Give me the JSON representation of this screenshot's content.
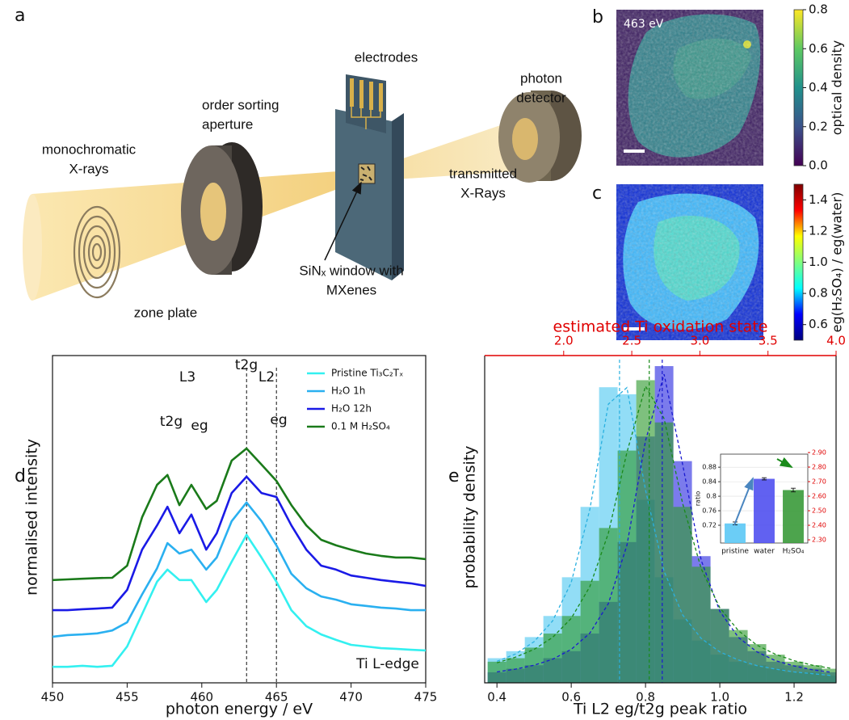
{
  "diagram": {
    "panel_label": "a",
    "labels": [
      {
        "lines": [
          "monochromatic",
          "X-rays"
        ]
      },
      {
        "lines": [
          "order sorting",
          "aperture"
        ]
      },
      {
        "lines": [
          "electrodes"
        ]
      },
      {
        "lines": [
          "photon",
          "detector"
        ]
      },
      {
        "lines": [
          "transmitted",
          "X-Rays"
        ]
      },
      {
        "lines": [
          "SiNₓ window with",
          "MXenes"
        ]
      },
      {
        "lines": [
          "zone plate"
        ]
      }
    ]
  },
  "chart_data": [
    {
      "type": "image",
      "panel_label": "b",
      "annotation": "463 eV",
      "colorbar_label": "optical density",
      "colormap": "viridis",
      "clim": [
        0,
        0.8
      ],
      "cticks": [
        {
          "value": 0,
          "label": "0.0"
        },
        {
          "value": 0.2,
          "label": "0.2"
        },
        {
          "value": 0.4,
          "label": "0.4"
        },
        {
          "value": 0.6,
          "label": "0.6"
        },
        {
          "value": 0.8,
          "label": "0.8"
        }
      ]
    },
    {
      "type": "image",
      "panel_label": "c",
      "colorbar_label": "eg(H₂SO₄) / eg(water)",
      "colormap": "jet",
      "clim": [
        0.5,
        1.5
      ],
      "cticks": [
        0.6,
        0.8,
        {
          "value": 1,
          "label": "1.0"
        },
        1.2,
        1.4
      ]
    },
    {
      "type": "line",
      "panel_label": "d",
      "xlabel": "photon energy / eV",
      "ylabel": "normalised intensity",
      "x": [
        450,
        451,
        452,
        453,
        454,
        455,
        456,
        457,
        457.7,
        458.5,
        459.3,
        460.3,
        461,
        462,
        463,
        464,
        465,
        466,
        467,
        468,
        469,
        470,
        471,
        472,
        473,
        474,
        475
      ],
      "series": [
        {
          "name": "Pristine Ti₃C₂Tₓ",
          "color": "#33f0f0",
          "values": [
            0.049,
            0.049,
            0.052,
            0.049,
            0.052,
            0.111,
            0.21,
            0.309,
            0.346,
            0.314,
            0.314,
            0.247,
            0.284,
            0.37,
            0.452,
            0.383,
            0.309,
            0.222,
            0.173,
            0.148,
            0.131,
            0.116,
            0.111,
            0.106,
            0.104,
            0.101,
            0.099
          ]
        },
        {
          "name": "H₂O 1h",
          "color": "#2ab0f0",
          "values": [
            0.141,
            0.146,
            0.148,
            0.151,
            0.16,
            0.185,
            0.27,
            0.35,
            0.427,
            0.395,
            0.407,
            0.346,
            0.383,
            0.494,
            0.551,
            0.494,
            0.42,
            0.333,
            0.289,
            0.264,
            0.254,
            0.24,
            0.235,
            0.23,
            0.227,
            0.222,
            0.222
          ]
        },
        {
          "name": "H₂O 12h",
          "color": "#1a1ae6",
          "values": [
            0.222,
            0.222,
            0.225,
            0.227,
            0.23,
            0.284,
            0.407,
            0.481,
            0.538,
            0.457,
            0.514,
            0.407,
            0.457,
            0.58,
            0.63,
            0.58,
            0.568,
            0.481,
            0.407,
            0.358,
            0.346,
            0.328,
            0.321,
            0.314,
            0.309,
            0.304,
            0.296
          ]
        },
        {
          "name": "0.1 M H₂SO₄",
          "color": "#1a7a1a",
          "values": [
            0.314,
            0.316,
            0.318,
            0.32,
            0.321,
            0.358,
            0.506,
            0.605,
            0.635,
            0.543,
            0.605,
            0.531,
            0.556,
            0.679,
            0.716,
            0.667,
            0.617,
            0.543,
            0.481,
            0.437,
            0.42,
            0.407,
            0.395,
            0.388,
            0.383,
            0.383,
            0.378
          ]
        }
      ],
      "xlim": [
        450,
        475
      ],
      "xticks": [
        450,
        455,
        460,
        465,
        470,
        475
      ],
      "ylim": [
        0,
        1
      ],
      "vlines": [
        463,
        465
      ],
      "annotations": [
        "L3",
        "L2",
        "t2g",
        "eg",
        "t2g",
        "eg",
        "Ti L-edge"
      ],
      "legend": "upper right"
    },
    {
      "type": "histogram",
      "panel_label": "e",
      "xlabel": "Ti L2 eg/t2g peak ratio",
      "ylabel": "probability density",
      "x2label": "estimated Ti oxidation state",
      "x2color": "#e00000",
      "bins": [
        0.375,
        0.425,
        0.475,
        0.525,
        0.575,
        0.625,
        0.675,
        0.725,
        0.775,
        0.825,
        0.875,
        0.925,
        0.975,
        1.025,
        1.075,
        1.125,
        1.175,
        1.225,
        1.275,
        1.325
      ],
      "series": [
        {
          "color": "#4fc8f0",
          "values": [
            0.07,
            0.09,
            0.13,
            0.19,
            0.3,
            0.5,
            0.84,
            0.82,
            0.52,
            0.3,
            0.18,
            0.12,
            0.08,
            0.06,
            0.05,
            0.04,
            0.03,
            0.03,
            0.02
          ]
        },
        {
          "color": "#2a2ae0",
          "values": [
            0.03,
            0.04,
            0.05,
            0.07,
            0.09,
            0.14,
            0.23,
            0.4,
            0.7,
            0.9,
            0.63,
            0.36,
            0.21,
            0.13,
            0.09,
            0.06,
            0.05,
            0.04,
            0.03
          ]
        },
        {
          "color": "#2e9a2e",
          "values": [
            0.06,
            0.07,
            0.1,
            0.14,
            0.19,
            0.29,
            0.44,
            0.66,
            0.86,
            0.74,
            0.5,
            0.33,
            0.21,
            0.15,
            0.11,
            0.08,
            0.06,
            0.05,
            0.04
          ]
        }
      ],
      "fits": {
        "x": [
          0.4,
          0.45,
          0.5,
          0.55,
          0.6,
          0.65,
          0.7,
          0.75,
          0.8,
          0.85,
          0.9,
          0.95,
          1,
          1.05,
          1.1,
          1.15,
          1.2,
          1.25,
          1.3
        ],
        "series": [
          {
            "color": "#2ab0e0",
            "values": [
              0.061,
              0.082,
              0.117,
              0.176,
              0.285,
              0.492,
              0.792,
              0.839,
              0.548,
              0.317,
              0.193,
              0.126,
              0.088,
              0.065,
              0.049,
              0.039,
              0.031,
              0.026,
              0.021
            ]
          },
          {
            "color": "#1a1ad0",
            "values": [
              0.031,
              0.039,
              0.05,
              0.067,
              0.095,
              0.141,
              0.225,
              0.391,
              0.688,
              0.877,
              0.62,
              0.348,
              0.203,
              0.129,
              0.088,
              0.063,
              0.048,
              0.037,
              0.03
            ]
          },
          {
            "color": "#1a8a1a",
            "values": [
              0.057,
              0.073,
              0.095,
              0.129,
              0.183,
              0.273,
              0.425,
              0.655,
              0.843,
              0.751,
              0.509,
              0.324,
              0.213,
              0.148,
              0.107,
              0.081,
              0.063,
              0.05,
              0.041
            ]
          }
        ]
      },
      "vlines": [
        0.73,
        0.845,
        0.81
      ],
      "xlim": [
        0.367,
        1.313
      ],
      "xticks": [
        0.4,
        0.6,
        0.8,
        {
          "value": 1,
          "label": "1.0"
        },
        1.2
      ],
      "x2lim": [
        1.42,
        4
      ],
      "x2ticks": [
        {
          "value": 2,
          "label": "2.0"
        },
        2.5,
        {
          "value": 3,
          "label": "3.0"
        },
        3.5,
        {
          "value": 4,
          "label": "4.0"
        }
      ],
      "ylim": [
        0,
        0.93
      ]
    },
    {
      "type": "bar",
      "ylabel": "ratio",
      "categories": [
        "pristine",
        "water",
        "H₂SO₄"
      ],
      "values": [
        0.725,
        0.848,
        0.817
      ],
      "errors": [
        0.004,
        0.003,
        0.005
      ],
      "colors": [
        "#5bc8f5",
        "#5050f0",
        "#3a9a3a"
      ],
      "ylim": [
        0.671,
        0.916
      ],
      "yticks": [
        0.72,
        0.76,
        0.8,
        0.84,
        0.88
      ],
      "y2lim": [
        2.278,
        2.889
      ],
      "y2ticks": [
        {
          "value": 2.3,
          "label": "2.30"
        },
        {
          "value": 2.4,
          "label": "2.40"
        },
        {
          "value": 2.5,
          "label": "2.50"
        },
        {
          "value": 2.6,
          "label": "2.60"
        },
        {
          "value": 2.7,
          "label": "2.70"
        },
        {
          "value": 2.8,
          "label": "2.80"
        },
        {
          "value": 2.9,
          "label": "2.90"
        }
      ],
      "y2color": "#e00000",
      "grid": true
    }
  ]
}
